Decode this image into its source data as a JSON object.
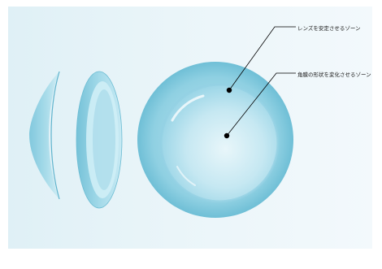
{
  "labels": {
    "outer_zone": "レンズを安定させるゾーン",
    "inner_zone": "角膜の形状を変化させるゾーン"
  },
  "colors": {
    "background_light": "#eaf5f9",
    "lens_outer": "#7fc8dc",
    "lens_inner": "#a9dceb",
    "lens_center": "#cdebf4",
    "leader_line": "#000000"
  }
}
